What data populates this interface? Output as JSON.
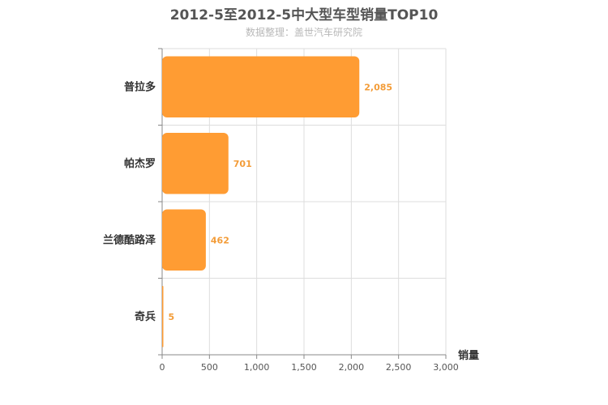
{
  "chart_data": {
    "type": "bar",
    "orientation": "horizontal",
    "title": "2012-5至2012-5中大型车型销量TOP10",
    "subtitle": "数据整理：盖世汽车研究院",
    "categories": [
      "普拉多",
      "帕杰罗",
      "兰德酷路泽",
      "奇兵"
    ],
    "values": [
      2085,
      701,
      462,
      5
    ],
    "data_labels": [
      "2,085",
      "701",
      "462",
      "5"
    ],
    "xlabel": "销量",
    "ylabel": "",
    "xlim": [
      0,
      3000
    ],
    "x_ticks": [
      0,
      500,
      1000,
      1500,
      2000,
      2500,
      3000
    ],
    "x_tick_labels": [
      "0",
      "500",
      "1,000",
      "1,500",
      "2,000",
      "2,500",
      "3,000"
    ],
    "grid": true,
    "legend": "none",
    "bar_color": "#ff9c33",
    "label_color": "#f39c38"
  }
}
